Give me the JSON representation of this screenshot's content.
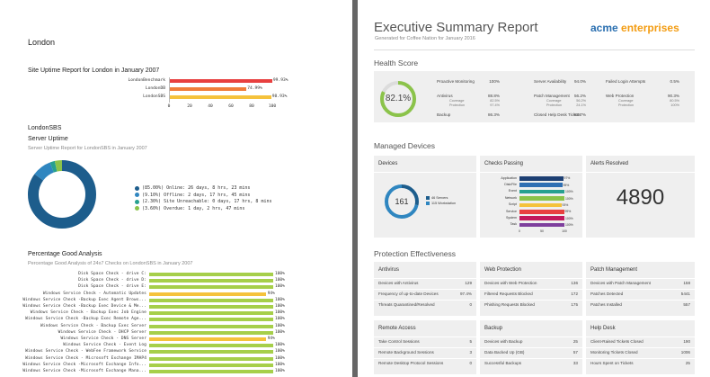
{
  "left": {
    "city": "London",
    "uptime_title": "Site Uptime Report for London in January 2007",
    "uptime_chart": {
      "type": "bar",
      "orientation": "horizontal",
      "categories": [
        "LondonBenchmark",
        "LondonDB",
        "LondonSBS"
      ],
      "values": [
        99.93,
        74.99,
        98.93
      ],
      "value_labels": [
        "99.93%",
        "74.99%",
        "98.93%"
      ],
      "colors": [
        "#e8403f",
        "#f07d3a",
        "#f5c23c"
      ],
      "xlim": [
        0,
        100
      ],
      "ticks": [
        "0",
        "20",
        "40",
        "60",
        "80",
        "100"
      ]
    },
    "site_name": "LondonSBS",
    "server_uptime_title": "Server Uptime",
    "server_uptime_sub": "Server Uptime Report for LondonSBS in January 2007",
    "donut": {
      "type": "pie",
      "slices": [
        {
          "pct": 85.0,
          "color": "#1d5d8c",
          "label": "(85.00%) Online: 26 days, 8 hrs, 23 mins"
        },
        {
          "pct": 9.1,
          "color": "#2f86c0",
          "label": "(9.10%) Offline: 2 days, 17 hrs, 45 mins"
        },
        {
          "pct": 2.3,
          "color": "#27a090",
          "label": "(2.30%) Site Unreachable: 0 days, 17 hrs, 8 mins"
        },
        {
          "pct": 3.6,
          "color": "#8bc34a",
          "label": "(3.60%) Overdue: 1 day, 2 hrs, 47 mins"
        }
      ]
    },
    "pg_title": "Percentage Good Analysis",
    "pg_sub": "Percentage Good Analysis of 24x7 Checks on LondonSBS in January 2007",
    "pg_rows": [
      {
        "label": "Disk Space Check - drive C:",
        "value": 100,
        "text": "100%",
        "color": "#a6cf4a"
      },
      {
        "label": "Disk Space Check - drive D:",
        "value": 100,
        "text": "100%",
        "color": "#a6cf4a"
      },
      {
        "label": "Disk Space Check - drive E:",
        "value": 100,
        "text": "100%",
        "color": "#a6cf4a"
      },
      {
        "label": "Windows Service Check - Automatic Updates",
        "value": 94,
        "text": "94%",
        "color": "#f5c23c"
      },
      {
        "label": "Windows Service Check -Backup Exec Agent Brows...",
        "value": 100,
        "text": "100%",
        "color": "#a6cf4a"
      },
      {
        "label": "Windows Service Check -Backup Exec Device & Me...",
        "value": 100,
        "text": "100%",
        "color": "#a6cf4a"
      },
      {
        "label": "Windows Service Check - Backup Exec Job Engine",
        "value": 100,
        "text": "100%",
        "color": "#a6cf4a"
      },
      {
        "label": "Windows Service Check -Backup Exec Remote Age...",
        "value": 100,
        "text": "100%",
        "color": "#a6cf4a"
      },
      {
        "label": "Windows Service Check - Backup Exec Server",
        "value": 100,
        "text": "100%",
        "color": "#a6cf4a"
      },
      {
        "label": "Windows Service Check - DHCP Server",
        "value": 100,
        "text": "100%",
        "color": "#a6cf4a"
      },
      {
        "label": "Windows Service Check - DNS Server",
        "value": 94,
        "text": "94%",
        "color": "#f5c23c"
      },
      {
        "label": "Windows Service Check - Event Log",
        "value": 100,
        "text": "100%",
        "color": "#a6cf4a"
      },
      {
        "label": "Windows Service Check - WebFee Framework Service",
        "value": 100,
        "text": "100%",
        "color": "#a6cf4a"
      },
      {
        "label": "Windows Service Check - Microsoft Exchange IMAP4",
        "value": 100,
        "text": "100%",
        "color": "#a6cf4a"
      },
      {
        "label": "Windows Service Check -Microsoft Exchange Info...",
        "value": 100,
        "text": "100%",
        "color": "#a6cf4a"
      },
      {
        "label": "Windows Service Check -Microsoft Exchange Mana...",
        "value": 100,
        "text": "100%",
        "color": "#a6cf4a"
      }
    ]
  },
  "right": {
    "title": "Executive Summary Report",
    "subtitle": "Generated for Coffee Nation for January 2016",
    "brand_a": "acme",
    "brand_b": "enterprises",
    "brand_color_a": "#2a6fb0",
    "brand_color_b": "#f39c12",
    "health_title": "Health Score",
    "health_score": "82.1%",
    "health_score_value": 82.1,
    "health_cols": [
      [
        {
          "label": "Proactive Monitoring",
          "value": "100%"
        },
        {
          "label": "Antivirus",
          "value": "88.8%",
          "subs": [
            {
              "label": "Coverage",
              "value": "82.5%"
            },
            {
              "label": "Protection",
              "value": "97.4%"
            }
          ]
        },
        {
          "label": "Backup",
          "value": "86.3%"
        }
      ],
      [
        {
          "label": "Server Availability",
          "value": "94.0%"
        },
        {
          "label": "Patch Management",
          "value": "56.2%",
          "subs": [
            {
              "label": "Coverage",
              "value": "56.2%"
            },
            {
              "label": "Protection",
              "value": "24.1%"
            }
          ]
        },
        {
          "label": "Closed Help Desk Tickets",
          "value": "82.7%"
        }
      ],
      [
        {
          "label": "Failed Login Attempts",
          "value": "0.5%"
        },
        {
          "label": "Web Protection",
          "value": "90.3%",
          "subs": [
            {
              "label": "Coverage",
              "value": "80.5%"
            },
            {
              "label": "Protection",
              "value": "100%"
            }
          ]
        }
      ]
    ],
    "managed_title": "Managed Devices",
    "devices_title": "Devices",
    "devices_count": "161",
    "devices_legend": [
      {
        "label": "46 Servers",
        "color": "#1d5d8c"
      },
      {
        "label": "115 Workstation",
        "color": "#2f86c0"
      }
    ],
    "devices_split": [
      46,
      115
    ],
    "checks_title": "Checks Passing",
    "checks_chart": {
      "type": "bar",
      "orientation": "horizontal",
      "categories": [
        "Application",
        "Disk/File",
        "Event",
        "Network",
        "Script",
        "Service",
        "System",
        "Task"
      ],
      "values": [
        97,
        95,
        100,
        100,
        93,
        99,
        100,
        100
      ],
      "value_labels": [
        "97%",
        "95%",
        "100%",
        "100%",
        "93%",
        "99%",
        "100%",
        "100%"
      ],
      "colors": [
        "#1d3f73",
        "#2f6fb3",
        "#27a090",
        "#8bc34a",
        "#f5c23c",
        "#e8403f",
        "#c2185b",
        "#7e3f9d"
      ],
      "ticks": [
        "0",
        "50",
        "100"
      ],
      "xlim": [
        0,
        100
      ]
    },
    "alerts_title": "Alerts Resolved",
    "alerts_value": "4890",
    "protection_title": "Protection Effectiveness",
    "pe_boxes": [
      {
        "title": "Antivirus",
        "rows": [
          {
            "l": "Devices with Antivirus",
            "v": "129"
          },
          {
            "l": "Frequency of up-to-date Devices",
            "v": "97.4%"
          },
          {
            "l": "Threats Quarantined/Resolved",
            "v": "0"
          }
        ]
      },
      {
        "title": "Web Protection",
        "rows": [
          {
            "l": "Devices with Web Protection",
            "v": "136"
          },
          {
            "l": "Filtered Requests Blocked",
            "v": "172"
          },
          {
            "l": "Phishing Requests Blocked",
            "v": "175"
          }
        ]
      },
      {
        "title": "Patch Management",
        "rows": [
          {
            "l": "Devices with Patch Management",
            "v": "158"
          },
          {
            "l": "Patches Detected",
            "v": "5441"
          },
          {
            "l": "Patches Installed",
            "v": "557"
          }
        ]
      },
      {
        "title": "Remote Access",
        "rows": [
          {
            "l": "Take Control Sessions",
            "v": "5"
          },
          {
            "l": "Remote Background Sessions",
            "v": "3"
          },
          {
            "l": "Remote Desktop Protocol Sessions",
            "v": "0"
          }
        ]
      },
      {
        "title": "Backup",
        "rows": [
          {
            "l": "Devices with Backup",
            "v": "25"
          },
          {
            "l": "Data Backed Up (GB)",
            "v": "57"
          },
          {
            "l": "Successful Backups",
            "v": "33"
          }
        ]
      },
      {
        "title": "Help Desk",
        "rows": [
          {
            "l": "Client-Raised Tickets Closed",
            "v": "190"
          },
          {
            "l": "Monitoring Tickets Closed",
            "v": "1006"
          },
          {
            "l": "Hours Spent on Tickets",
            "v": "25"
          }
        ]
      }
    ]
  }
}
